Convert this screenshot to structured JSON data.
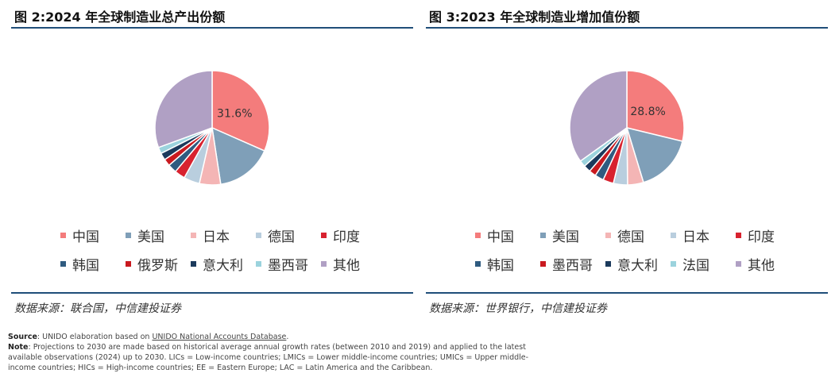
{
  "chart_data": [
    {
      "type": "pie",
      "title": "图 2:2024 年全球制造业总产出份额",
      "categories": [
        "中国",
        "美国",
        "日本",
        "德国",
        "印度",
        "韩国",
        "俄罗斯",
        "意大利",
        "墨西哥",
        "其他"
      ],
      "values": [
        31.6,
        16.0,
        6.0,
        4.5,
        3.0,
        2.5,
        2.0,
        2.0,
        1.8,
        30.6
      ],
      "data_labels": [
        "31.6%"
      ],
      "colors": [
        "#f47c7c",
        "#7f9fb8",
        "#f4b5b5",
        "#b9cede",
        "#d8222f",
        "#2f5b80",
        "#c9191f",
        "#1b3a5c",
        "#9bd3dd",
        "#b0a0c4"
      ],
      "legend_placement": "bottom",
      "source": "数据来源：联合国，中信建投证券"
    },
    {
      "type": "pie",
      "title": "图 3:2023 年全球制造业增加值份额",
      "categories": [
        "中国",
        "美国",
        "德国",
        "日本",
        "印度",
        "韩国",
        "墨西哥",
        "意大利",
        "法国",
        "其他"
      ],
      "values": [
        28.8,
        16.5,
        4.5,
        4.0,
        3.0,
        2.5,
        2.0,
        2.0,
        1.8,
        34.9
      ],
      "data_labels": [
        "28.8%"
      ],
      "colors": [
        "#f47c7c",
        "#7f9fb8",
        "#f4b5b5",
        "#b9cede",
        "#d8222f",
        "#2f5b80",
        "#c9191f",
        "#1b3a5c",
        "#9bd3dd",
        "#b0a0c4"
      ],
      "legend_placement": "bottom",
      "source": "数据来源：世界银行，中信建投证券"
    }
  ],
  "note": {
    "source_label": "Source",
    "source_text_a": ": UNIDO elaboration based on ",
    "source_link": "UNIDO National Accounts Database",
    "source_text_b": ".",
    "note_label": "Note",
    "note_text": ": Projections to 2030 are made based on historical average annual growth rates (between 2010 and 2019) and applied to the latest available observations (2024) up to 2030. LICs = Low-income countries; LMICs = Lower middle-income countries; UMICs = Upper middle-income countries; HICs = High-income countries; EE = Eastern Europe; LAC = Latin America and the Caribbean."
  }
}
